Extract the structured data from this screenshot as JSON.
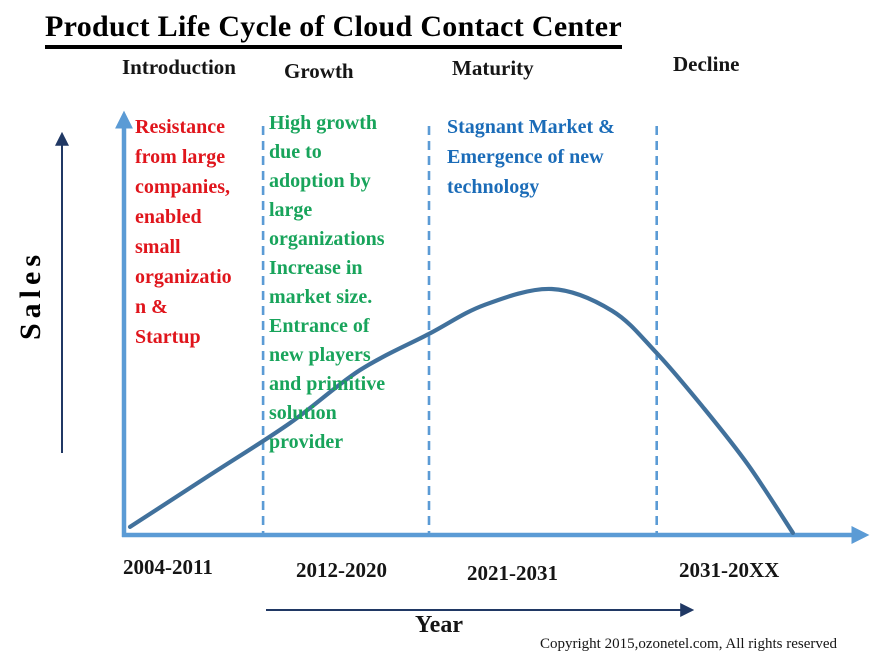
{
  "title": "Product Life Cycle of Cloud Contact Center",
  "axes": {
    "y_label": "Sales",
    "x_label": "Year"
  },
  "phases": [
    {
      "label": "Introduction",
      "years": "2004-2011",
      "annotation": "Resistance\nfrom large\ncompanies,\nenabled\nsmall\norganizatio\nn &\nStartup"
    },
    {
      "label": "Growth",
      "years": "2012-2020",
      "annotation": "High growth\ndue to\nadoption by\nlarge\norganizations\nIncrease in\nmarket size.\nEntrance of\nnew players\nand primitive\nsolution\nprovider"
    },
    {
      "label": "Maturity",
      "years": "2021-2031",
      "annotation": "Stagnant Market &\nEmergence of new\ntechnology"
    },
    {
      "label": "Decline",
      "years": "2031-20XX",
      "annotation": ""
    }
  ],
  "footer": {
    "copyright": "Copyright 2015,ozonetel.com, All rights reserved"
  },
  "colors": {
    "title_text": "#000000",
    "intro_annotation": "#e0151c",
    "growth_annotation": "#18a45b",
    "maturity_annotation": "#1b6cb8",
    "axis": "#5b9bd5",
    "curve": "#41719c",
    "thin_arrow": "#203864"
  },
  "chart_data": {
    "type": "line",
    "title": "Product Life Cycle of Cloud Contact Center",
    "xlabel": "Year",
    "ylabel": "Sales",
    "x_categories": [
      "2004-2011",
      "2012-2020",
      "2021-2031",
      "2031-20XX"
    ],
    "phases": [
      "Introduction",
      "Growth",
      "Maturity",
      "Decline"
    ],
    "phase_boundaries_pct_x": [
      18.7,
      41.0,
      71.6
    ],
    "curve_points_pct": [
      [
        0.8,
        1.9
      ],
      [
        11.6,
        14.1
      ],
      [
        22.3,
        26.2
      ],
      [
        31.7,
        38.6
      ],
      [
        41.0,
        47.1
      ],
      [
        48.5,
        53.9
      ],
      [
        57.5,
        57.6
      ],
      [
        65.6,
        52.5
      ],
      [
        71.6,
        42.6
      ],
      [
        77.8,
        30.0
      ],
      [
        83.9,
        16.4
      ],
      [
        89.9,
        0.5
      ]
    ],
    "ylim_pct": [
      0,
      100
    ],
    "y_scale_note": "qualitative sales axis - no numeric ticks shown",
    "grid": "off",
    "legend": "none",
    "annotations": [
      {
        "phase": "Introduction",
        "text": "Resistance from large companies, enabled small organization & Startup",
        "color": "#e0151c"
      },
      {
        "phase": "Growth",
        "text": "High growth due to adoption by large organizations Increase in market size. Entrance of new players and primitive solution provider",
        "color": "#18a45b"
      },
      {
        "phase": "Maturity",
        "text": "Stagnant Market & Emergence of new technology",
        "color": "#1b6cb8"
      }
    ]
  }
}
